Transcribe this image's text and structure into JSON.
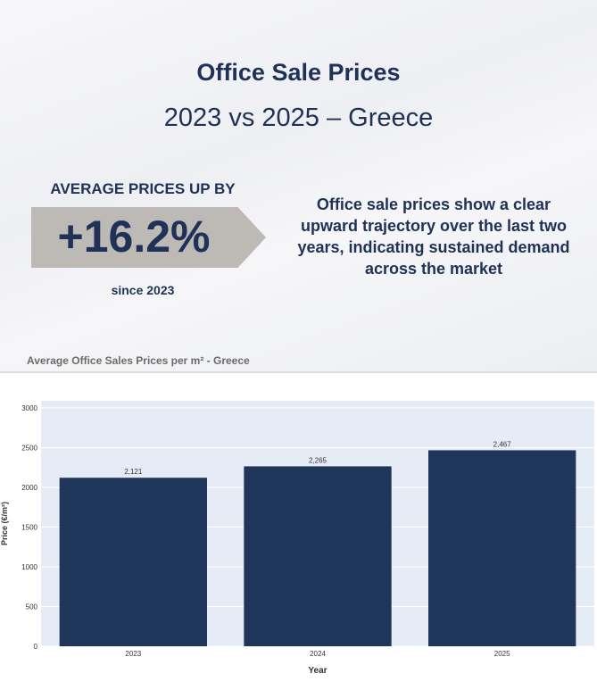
{
  "header": {
    "title": "Office Sale Prices",
    "subtitle": "2023 vs 2025 – Greece"
  },
  "kpi": {
    "label": "AVERAGE PRICES UP BY",
    "value": "+16.2%",
    "since": "since 2023"
  },
  "description": "Office sale prices show a clear upward trajectory over the last two years, indicating sustained demand across the market",
  "chart_data": {
    "type": "bar",
    "title": "Average Office Sales Prices per m² - Greece",
    "categories": [
      "2023",
      "2024",
      "2025"
    ],
    "values": [
      2121,
      2265,
      2467
    ],
    "labels": [
      "2,121",
      "2,265",
      "2,467"
    ],
    "xlabel": "Year",
    "ylabel": "Price (€/m²)",
    "ylim": [
      0,
      3000
    ],
    "yticks": [
      0,
      500,
      1000,
      1500,
      2000,
      2500,
      3000
    ],
    "bar_color": "#1f3559",
    "plot_bg": "#e5ecf6",
    "grid": true
  }
}
